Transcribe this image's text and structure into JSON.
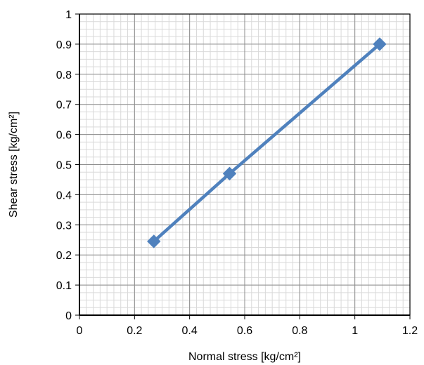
{
  "chart_data": {
    "type": "scatter",
    "xlabel": "Normal stress [kg/cm²]",
    "ylabel": "Shear stress [kg/cm²]",
    "xlim": [
      0,
      1.2
    ],
    "ylim": [
      0,
      1
    ],
    "x_ticks": [
      "0",
      "0.2",
      "0.4",
      "0.6",
      "0.8",
      "1",
      "1.2"
    ],
    "y_ticks": [
      "0",
      "0.1",
      "0.2",
      "0.3",
      "0.4",
      "0.5",
      "0.6",
      "0.7",
      "0.8",
      "0.9",
      "1"
    ],
    "grid": true,
    "legend": "none",
    "series": [
      {
        "x": [
          0.27,
          0.545,
          1.09
        ],
        "y": [
          0.245,
          0.47,
          0.9
        ],
        "marker": "diamond",
        "line": "straight",
        "color": "#4f81bd"
      }
    ]
  }
}
